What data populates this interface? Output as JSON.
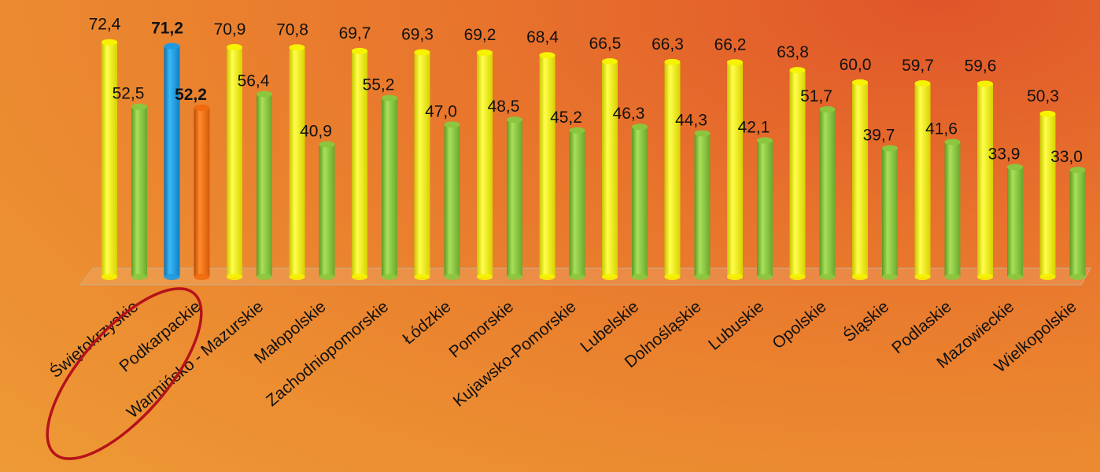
{
  "chart_data": {
    "type": "bar",
    "categories": [
      "Świętokrzyskie",
      "Podkarpackie",
      "Warmińsko - Mazurskie",
      "Małopolskie",
      "Zachodniopomorskie",
      "Łódzkie",
      "Pomorskie",
      "Kujawsko-Pomorskie",
      "Lubelskie",
      "Dolnośląskie",
      "Lubuskie",
      "Opolskie",
      "Śląskie",
      "Podlaskie",
      "Mazowieckie",
      "Wielkopolskie"
    ],
    "series": [
      {
        "values": [
          72.4,
          71.2,
          70.9,
          70.8,
          69.7,
          69.3,
          69.2,
          68.4,
          66.5,
          66.3,
          66.2,
          63.8,
          60.0,
          59.7,
          59.6,
          50.3
        ],
        "labels": [
          "72,4",
          "71,2",
          "70,9",
          "70,8",
          "69,7",
          "69,3",
          "69,2",
          "68,4",
          "66,5",
          "66,3",
          "66,2",
          "63,8",
          "60,0",
          "59,7",
          "59,6",
          "50,3"
        ]
      },
      {
        "values": [
          52.5,
          52.2,
          56.4,
          40.9,
          55.2,
          47.0,
          48.5,
          45.2,
          46.3,
          44.3,
          42.1,
          51.7,
          39.7,
          41.6,
          33.9,
          33.0
        ],
        "labels": [
          "52,5",
          "52,2",
          "56,4",
          "40,9",
          "55,2",
          "47,0",
          "48,5",
          "45,2",
          "46,3",
          "44,3",
          "42,1",
          "51,7",
          "39,7",
          "41,6",
          "33,9",
          "33,0"
        ]
      }
    ],
    "highlight_category": "Podkarpackie",
    "highlight_colors": [
      "#1e9be0",
      "#f26a10"
    ],
    "series_colors": [
      "#f7f200",
      "#8cc63f"
    ],
    "ylim": [
      0,
      80
    ],
    "grid": false,
    "legend": "none"
  }
}
